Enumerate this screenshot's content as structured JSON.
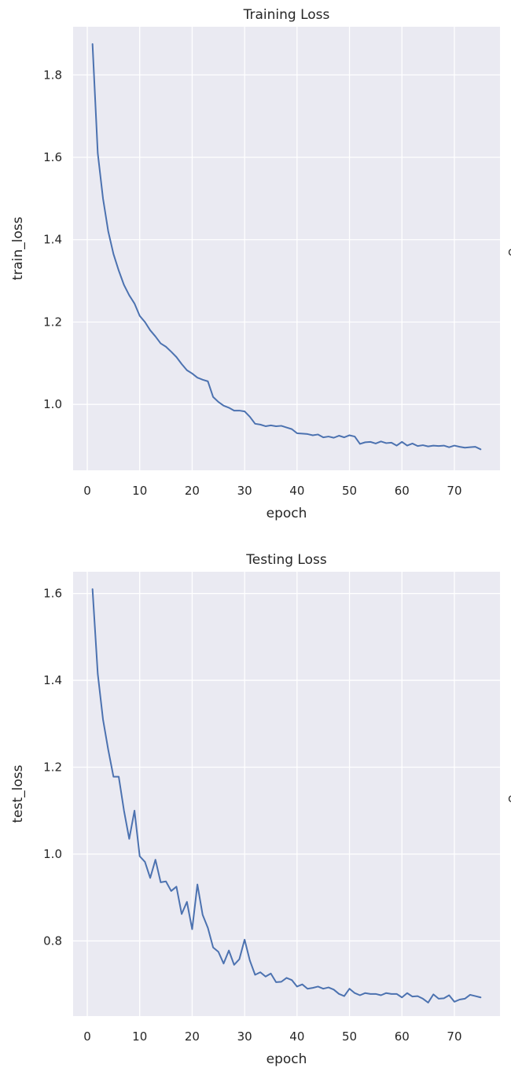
{
  "chart_data": [
    {
      "type": "line",
      "title": "Training Loss",
      "xlabel": "epoch",
      "ylabel": "train_loss",
      "xlim": [
        -2.7,
        78.7
      ],
      "ylim": [
        0.84,
        1.917
      ],
      "xticks": [
        0,
        10,
        20,
        30,
        40,
        50,
        60,
        70
      ],
      "yticks": [
        1.0,
        1.2,
        1.4,
        1.6,
        1.8
      ],
      "ytick_labels": [
        "1.0",
        "1.2",
        "1.4",
        "1.6",
        "1.8"
      ],
      "grid": true,
      "colors": {
        "background": "#eaeaf2",
        "grid": "#ffffff",
        "line": "#4c72b0"
      },
      "series": [
        {
          "x": [
            1,
            2,
            3,
            4,
            5,
            6,
            7,
            8,
            9,
            10,
            11,
            12,
            13,
            14,
            15,
            16,
            17,
            18,
            19,
            20,
            21,
            22,
            23,
            24,
            25,
            26,
            27,
            28,
            29,
            30,
            31,
            32,
            33,
            34,
            35,
            36,
            37,
            38,
            39,
            40,
            41,
            42,
            43,
            44,
            45,
            46,
            47,
            48,
            49,
            50,
            51,
            52,
            53,
            54,
            55,
            56,
            57,
            58,
            59,
            60,
            61,
            62,
            63,
            64,
            65,
            66,
            67,
            68,
            69,
            70,
            71,
            72,
            73,
            74,
            75
          ],
          "values": [
            1.875,
            1.61,
            1.5,
            1.42,
            1.365,
            1.325,
            1.29,
            1.265,
            1.245,
            1.215,
            1.2,
            1.18,
            1.165,
            1.148,
            1.14,
            1.128,
            1.115,
            1.098,
            1.083,
            1.075,
            1.065,
            1.06,
            1.056,
            1.018,
            1.006,
            0.997,
            0.992,
            0.985,
            0.985,
            0.983,
            0.97,
            0.953,
            0.951,
            0.947,
            0.949,
            0.947,
            0.948,
            0.944,
            0.94,
            0.93,
            0.929,
            0.928,
            0.925,
            0.927,
            0.92,
            0.922,
            0.919,
            0.924,
            0.92,
            0.925,
            0.922,
            0.904,
            0.908,
            0.909,
            0.905,
            0.91,
            0.906,
            0.907,
            0.9,
            0.909,
            0.9,
            0.905,
            0.899,
            0.901,
            0.898,
            0.9,
            0.899,
            0.9,
            0.896,
            0.9,
            0.897,
            0.895,
            0.896,
            0.897,
            0.891
          ]
        }
      ]
    },
    {
      "type": "line",
      "title": "Testing Loss",
      "xlabel": "epoch",
      "ylabel": "test_loss",
      "xlim": [
        -2.7,
        78.7
      ],
      "ylim": [
        0.627,
        1.65
      ],
      "xticks": [
        0,
        10,
        20,
        30,
        40,
        50,
        60,
        70
      ],
      "yticks": [
        0.8,
        1.0,
        1.2,
        1.4,
        1.6
      ],
      "ytick_labels": [
        "0.8",
        "1.0",
        "1.2",
        "1.4",
        "1.6"
      ],
      "grid": true,
      "colors": {
        "background": "#eaeaf2",
        "grid": "#ffffff",
        "line": "#4c72b0"
      },
      "series": [
        {
          "x": [
            1,
            2,
            3,
            4,
            5,
            6,
            7,
            8,
            9,
            10,
            11,
            12,
            13,
            14,
            15,
            16,
            17,
            18,
            19,
            20,
            21,
            22,
            23,
            24,
            25,
            26,
            27,
            28,
            29,
            30,
            31,
            32,
            33,
            34,
            35,
            36,
            37,
            38,
            39,
            40,
            41,
            42,
            43,
            44,
            45,
            46,
            47,
            48,
            49,
            50,
            51,
            52,
            53,
            54,
            55,
            56,
            57,
            58,
            59,
            60,
            61,
            62,
            63,
            64,
            65,
            66,
            67,
            68,
            69,
            70,
            71,
            72,
            73,
            74,
            75
          ],
          "values": [
            1.61,
            1.415,
            1.31,
            1.24,
            1.178,
            1.178,
            1.1,
            1.035,
            1.1,
            0.995,
            0.982,
            0.945,
            0.987,
            0.935,
            0.937,
            0.915,
            0.925,
            0.862,
            0.89,
            0.827,
            0.93,
            0.86,
            0.83,
            0.785,
            0.775,
            0.748,
            0.778,
            0.745,
            0.758,
            0.803,
            0.755,
            0.722,
            0.728,
            0.718,
            0.725,
            0.705,
            0.706,
            0.715,
            0.71,
            0.695,
            0.7,
            0.69,
            0.692,
            0.695,
            0.69,
            0.693,
            0.688,
            0.678,
            0.673,
            0.69,
            0.68,
            0.675,
            0.68,
            0.678,
            0.678,
            0.675,
            0.68,
            0.678,
            0.678,
            0.67,
            0.68,
            0.672,
            0.673,
            0.667,
            0.658,
            0.677,
            0.667,
            0.668,
            0.675,
            0.66,
            0.665,
            0.667,
            0.676,
            0.673,
            0.67
          ]
        }
      ]
    }
  ],
  "edge_marks": [
    "c",
    "c"
  ]
}
